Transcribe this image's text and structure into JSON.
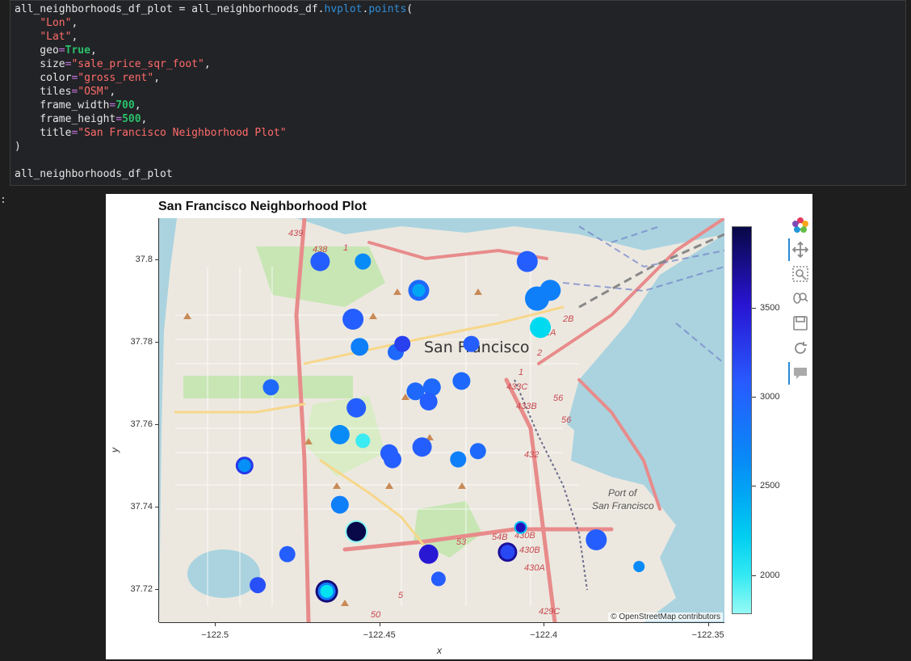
{
  "code": {
    "lines": [
      [
        {
          "t": "all_neighborhoods_df_plot = all_neighborhoods_df."
        },
        {
          "t": "hvplot",
          "c": "prop"
        },
        {
          "t": "."
        },
        {
          "t": "points",
          "c": "prop"
        },
        {
          "t": "("
        }
      ],
      [
        {
          "t": "    "
        },
        {
          "t": "\"Lon\"",
          "c": "str"
        },
        {
          "t": ","
        }
      ],
      [
        {
          "t": "    "
        },
        {
          "t": "\"Lat\"",
          "c": "str"
        },
        {
          "t": ","
        }
      ],
      [
        {
          "t": "    geo"
        },
        {
          "t": "=",
          "c": "op"
        },
        {
          "t": "True",
          "c": "kw"
        },
        {
          "t": ","
        }
      ],
      [
        {
          "t": "    size"
        },
        {
          "t": "=",
          "c": "op"
        },
        {
          "t": "\"sale_price_sqr_foot\"",
          "c": "str"
        },
        {
          "t": ","
        }
      ],
      [
        {
          "t": "    color"
        },
        {
          "t": "=",
          "c": "op"
        },
        {
          "t": "\"gross_rent\"",
          "c": "str"
        },
        {
          "t": ","
        }
      ],
      [
        {
          "t": "    tiles"
        },
        {
          "t": "=",
          "c": "op"
        },
        {
          "t": "\"OSM\"",
          "c": "str"
        },
        {
          "t": ","
        }
      ],
      [
        {
          "t": "    frame_width"
        },
        {
          "t": "=",
          "c": "op"
        },
        {
          "t": "700",
          "c": "kw"
        },
        {
          "t": ","
        }
      ],
      [
        {
          "t": "    frame_height"
        },
        {
          "t": "=",
          "c": "op"
        },
        {
          "t": "500",
          "c": "kw"
        },
        {
          "t": ","
        }
      ],
      [
        {
          "t": "    title"
        },
        {
          "t": "=",
          "c": "op"
        },
        {
          "t": "\"San Francisco Neighborhood Plot\"",
          "c": "str"
        }
      ],
      [
        {
          "t": ")"
        }
      ],
      [
        {
          "t": ""
        }
      ],
      [
        {
          "t": "all_neighborhoods_df_plot"
        }
      ]
    ]
  },
  "output_prompt": ":",
  "plot": {
    "title": "San Francisco Neighborhood Plot",
    "xlabel": "x",
    "ylabel": "y",
    "attribution_prefix": "©",
    "attribution": "OpenStreetMap contributors",
    "map_labels": {
      "city": "San Francisco",
      "port_line1": "Port of",
      "port_line2": "San Francisco"
    },
    "route_labels": [
      "439",
      "438",
      "1",
      "2B",
      "2A",
      "2",
      "1",
      "433C",
      "433B",
      "56",
      "56",
      "432",
      "53",
      "54B",
      "430B",
      "430B",
      "430A",
      "429C",
      "50",
      "5"
    ]
  },
  "chart_data": {
    "type": "scatter",
    "title": "San Francisco Neighborhood Plot",
    "xlabel": "x",
    "ylabel": "y",
    "xlim": [
      -122.517,
      -122.345
    ],
    "ylim": [
      37.712,
      37.81
    ],
    "xticks": [
      "−122.5",
      "−122.45",
      "−122.4",
      "−122.35"
    ],
    "xtick_values": [
      -122.5,
      -122.45,
      -122.4,
      -122.35
    ],
    "yticks": [
      "37.72",
      "37.74",
      "37.76",
      "37.78",
      "37.8"
    ],
    "ytick_values": [
      37.72,
      37.74,
      37.76,
      37.78,
      37.8
    ],
    "colorbar": {
      "ticks": [
        "2000",
        "2500",
        "3000",
        "3500"
      ],
      "tick_values": [
        2000,
        2500,
        3000,
        3500
      ],
      "range": [
        1780,
        3960
      ]
    },
    "points": [
      {
        "x": -122.468,
        "y": 37.7995,
        "r": 12,
        "c": 3050
      },
      {
        "x": -122.455,
        "y": 37.7995,
        "r": 10,
        "c": 2650
      },
      {
        "x": -122.405,
        "y": 37.7995,
        "r": 13,
        "c": 3050
      },
      {
        "x": -122.438,
        "y": 37.7925,
        "r": 13,
        "c": 2950
      },
      {
        "x": -122.438,
        "y": 37.7925,
        "r": 8,
        "c": 2450
      },
      {
        "x": -122.402,
        "y": 37.7905,
        "r": 15,
        "c": 2750
      },
      {
        "x": -122.398,
        "y": 37.7925,
        "r": 13,
        "c": 2750
      },
      {
        "x": -122.458,
        "y": 37.7855,
        "r": 13,
        "c": 3050
      },
      {
        "x": -122.401,
        "y": 37.7835,
        "r": 13,
        "c": 2150
      },
      {
        "x": -122.456,
        "y": 37.7788,
        "r": 11,
        "c": 2750
      },
      {
        "x": -122.445,
        "y": 37.7775,
        "r": 10,
        "c": 2950
      },
      {
        "x": -122.443,
        "y": 37.7795,
        "r": 10,
        "c": 3250
      },
      {
        "x": -122.422,
        "y": 37.7795,
        "r": 10,
        "c": 3050
      },
      {
        "x": -122.434,
        "y": 37.769,
        "r": 11,
        "c": 2950
      },
      {
        "x": -122.483,
        "y": 37.769,
        "r": 10,
        "c": 2950
      },
      {
        "x": -122.425,
        "y": 37.7705,
        "r": 11,
        "c": 2950
      },
      {
        "x": -122.439,
        "y": 37.768,
        "r": 11,
        "c": 2950
      },
      {
        "x": -122.435,
        "y": 37.7655,
        "r": 11,
        "c": 3050
      },
      {
        "x": -122.457,
        "y": 37.764,
        "r": 12,
        "c": 3050
      },
      {
        "x": -122.462,
        "y": 37.7575,
        "r": 12,
        "c": 2650
      },
      {
        "x": -122.455,
        "y": 37.756,
        "r": 9,
        "c": 1980
      },
      {
        "x": -122.437,
        "y": 37.7545,
        "r": 12,
        "c": 3050
      },
      {
        "x": -122.447,
        "y": 37.753,
        "r": 11,
        "c": 3050
      },
      {
        "x": -122.446,
        "y": 37.7515,
        "r": 11,
        "c": 3050
      },
      {
        "x": -122.42,
        "y": 37.7535,
        "r": 10,
        "c": 2950
      },
      {
        "x": -122.426,
        "y": 37.7515,
        "r": 10,
        "c": 2750
      },
      {
        "x": -122.491,
        "y": 37.75,
        "r": 11,
        "c": 3300
      },
      {
        "x": -122.491,
        "y": 37.75,
        "r": 8,
        "c": 2600
      },
      {
        "x": -122.462,
        "y": 37.7405,
        "r": 11,
        "c": 2750
      },
      {
        "x": -122.457,
        "y": 37.734,
        "r": 14,
        "c": 1800
      },
      {
        "x": -122.457,
        "y": 37.734,
        "r": 12,
        "c": 3950
      },
      {
        "x": -122.407,
        "y": 37.735,
        "r": 8,
        "c": 2300
      },
      {
        "x": -122.407,
        "y": 37.735,
        "r": 6,
        "c": 3600
      },
      {
        "x": -122.384,
        "y": 37.732,
        "r": 13,
        "c": 3050
      },
      {
        "x": -122.435,
        "y": 37.7285,
        "r": 12,
        "c": 3500
      },
      {
        "x": -122.478,
        "y": 37.7285,
        "r": 10,
        "c": 3050
      },
      {
        "x": -122.411,
        "y": 37.729,
        "r": 12,
        "c": 3700
      },
      {
        "x": -122.411,
        "y": 37.729,
        "r": 9,
        "c": 3200
      },
      {
        "x": -122.371,
        "y": 37.7255,
        "r": 7,
        "c": 2650
      },
      {
        "x": -122.432,
        "y": 37.7225,
        "r": 9,
        "c": 3050
      },
      {
        "x": -122.487,
        "y": 37.721,
        "r": 10,
        "c": 3150
      },
      {
        "x": -122.466,
        "y": 37.7195,
        "r": 14,
        "c": 3800
      },
      {
        "x": -122.466,
        "y": 37.7195,
        "r": 11,
        "c": 2800
      },
      {
        "x": -122.466,
        "y": 37.7195,
        "r": 8,
        "c": 2100
      }
    ]
  },
  "colors": {
    "page_bg": "#1e1e1e",
    "code_bg": "#222326",
    "map_water": "#aad3df",
    "map_land": "#e8e4dc",
    "accent": "#2a8ad6"
  },
  "toolbar": {
    "tools": [
      {
        "name": "bokeh-logo-icon",
        "active": false
      },
      {
        "name": "pan-icon",
        "active": true
      },
      {
        "name": "box-zoom-icon",
        "active": false
      },
      {
        "name": "wheel-zoom-icon",
        "active": false
      },
      {
        "name": "save-icon",
        "active": false
      },
      {
        "name": "reset-icon",
        "active": false
      },
      {
        "name": "hover-icon",
        "active": true
      }
    ]
  }
}
